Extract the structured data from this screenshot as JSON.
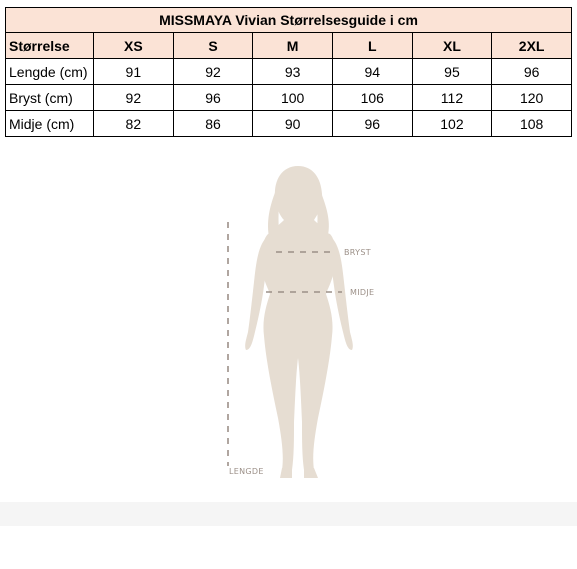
{
  "table": {
    "title": "MISSMAYA Vivian Størrelsesguide i cm",
    "header": {
      "label": "Størrelse",
      "sizes": [
        "XS",
        "S",
        "M",
        "L",
        "XL",
        "2XL"
      ]
    },
    "rows": [
      {
        "label": "Lengde (cm)",
        "values": [
          "91",
          "92",
          "93",
          "94",
          "95",
          "96"
        ]
      },
      {
        "label": "Bryst (cm)",
        "values": [
          "92",
          "96",
          "100",
          "106",
          "112",
          "120"
        ]
      },
      {
        "label": "Midje (cm)",
        "values": [
          "82",
          "86",
          "90",
          "96",
          "102",
          "108"
        ]
      }
    ]
  },
  "figure": {
    "bust_label": "BRYST",
    "waist_label": "MIDJE",
    "length_label": "LENGDE"
  },
  "colors": {
    "table_header_bg": "#fbe3d6",
    "silhouette": "#e6ddd2",
    "measure_line": "#9c9088"
  }
}
